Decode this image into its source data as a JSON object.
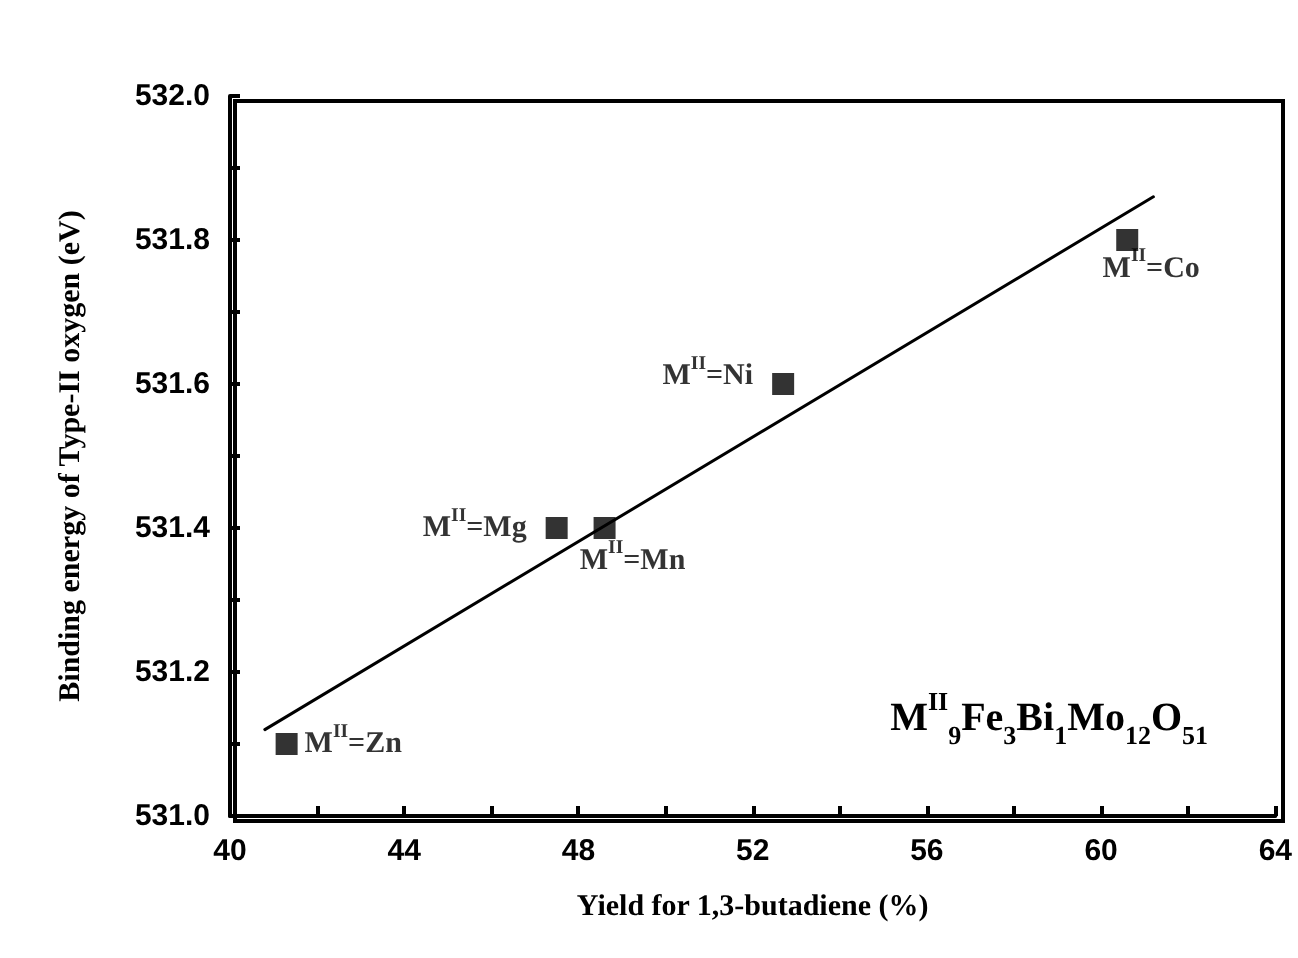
{
  "chart_data": {
    "type": "scatter",
    "xlabel": "Yield for 1,3-butadiene (%)",
    "ylabel": "Binding energy of Type-II oxygen (eV)",
    "x": [
      41.3,
      47.5,
      48.6,
      52.7,
      60.6
    ],
    "series": [
      {
        "color": "#000000",
        "values": [
          531.1,
          531.4,
          531.4,
          531.6,
          531.8
        ],
        "marker": "square"
      },
      {
        "type": "line",
        "color": "#000000",
        "x": [
          40.8,
          61.2
        ],
        "values": [
          531.12,
          531.86
        ],
        "marker": "none",
        "line_style": "solid"
      }
    ],
    "annotations": [
      {
        "text": "M$^{II}$=Zn",
        "x": 41.3,
        "y": 531.1
      },
      {
        "text": "M$^{II}$=Mg",
        "x": 47.5,
        "y": 531.4
      },
      {
        "text": "M$^{II}$=Mn",
        "x": 48.6,
        "y": 531.4
      },
      {
        "text": "M$^{II}$=Ni",
        "x": 52.7,
        "y": 531.6
      },
      {
        "text": "M$^{II}$=Co",
        "x": 60.6,
        "y": 531.8
      },
      "M$^{II}$$_{9}$Fe$_{3}$Bi$_{1}$Mo$_{12}$O$_{51}$"
    ],
    "xlim": [
      40,
      64
    ],
    "xticks": [
      40,
      44,
      48,
      52,
      56,
      60,
      64
    ],
    "ylim": [
      531.0,
      532.0
    ],
    "yticks": [
      {
        "value": 531.0,
        "label": "531.0"
      },
      {
        "value": 531.2,
        "label": "531.2"
      },
      {
        "value": 531.4,
        "label": "531.4"
      },
      {
        "value": 531.6,
        "label": "531.6"
      },
      {
        "value": 531.8,
        "label": "531.8"
      },
      {
        "value": 532.0,
        "label": "532.0"
      }
    ],
    "grid": false
  }
}
